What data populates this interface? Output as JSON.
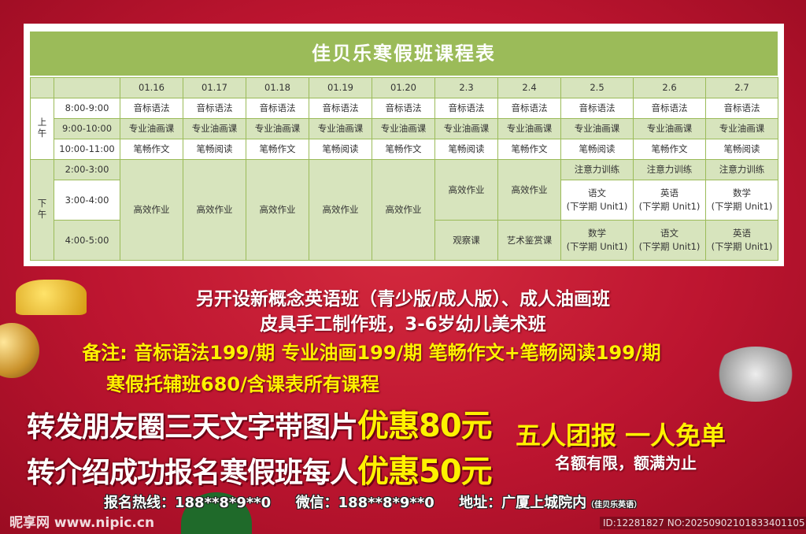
{
  "title": "佳贝乐寒假班课程表",
  "table": {
    "dates": [
      "01.16",
      "01.17",
      "01.18",
      "01.19",
      "01.20",
      "2.3",
      "2.4",
      "2.5",
      "2.6",
      "2.7"
    ],
    "morning_label": "上午",
    "afternoon_label": "下午",
    "morning": [
      {
        "time": "8:00-9:00",
        "cells": [
          "音标语法",
          "音标语法",
          "音标语法",
          "音标语法",
          "音标语法",
          "音标语法",
          "音标语法",
          "音标语法",
          "音标语法",
          "音标语法"
        ]
      },
      {
        "time": "9:00-10:00",
        "cells": [
          "专业油画课",
          "专业油画课",
          "专业油画课",
          "专业油画课",
          "专业油画课",
          "专业油画课",
          "专业油画课",
          "专业油画课",
          "专业油画课",
          "专业油画课"
        ]
      },
      {
        "time": "10:00-11:00",
        "cells": [
          "笔畅作文",
          "笔畅阅读",
          "笔畅作文",
          "笔畅阅读",
          "笔畅作文",
          "笔畅阅读",
          "笔畅作文",
          "笔畅阅读",
          "笔畅作文",
          "笔畅阅读"
        ]
      }
    ],
    "afternoon_times": [
      "2:00-3:00",
      "3:00-4:00",
      "4:00-5:00"
    ],
    "afternoon_full": [
      "高效作业",
      "高效作业",
      "高效作业",
      "高效作业",
      "高效作业"
    ],
    "afternoon_split": [
      {
        "top": "高效作业",
        "bottom": "观察课"
      },
      {
        "top": "高效作业",
        "bottom": "艺术鉴赏课"
      }
    ],
    "afternoon_three": [
      {
        "a": "注意力训练",
        "b1": "语文",
        "b2": "(下学期 Unit1)",
        "c1": "数学",
        "c2": "(下学期 Unit1)"
      },
      {
        "a": "注意力训练",
        "b1": "英语",
        "b2": "(下学期 Unit1)",
        "c1": "语文",
        "c2": "(下学期 Unit1)"
      },
      {
        "a": "注意力训练",
        "b1": "数学",
        "b2": "(下学期 Unit1)",
        "c1": "英语",
        "c2": "(下学期 Unit1)"
      }
    ]
  },
  "promo": {
    "line1": "另开设新概念英语班（青少版/成人版）、成人油画班",
    "line2": "皮具手工制作班，3-6岁幼儿美术班",
    "note": "备注: 音标语法199/期  专业油画199/期  笔畅作文+笔畅阅读199/期",
    "note2": "寒假托辅班680/含课表所有课程",
    "offer1_text": "转发朋友圈三天文字带图片",
    "offer1_value": "优惠80元",
    "offer2_text": "转介绍成功报名寒假班每人",
    "offer2_value": "优惠50元",
    "group": "五人团报 一人免单",
    "limited": "名额有限，额满为止"
  },
  "footer": {
    "hotline": "报名热线：188**8*9**0",
    "wechat": "微信：188**8*9**0",
    "address": "地址：广厦上城院内",
    "address_note": "（佳贝乐英语）"
  },
  "watermark": {
    "site": "昵享网 www.nipic.cn",
    "id": "ID:12281827 NO:20250902101833401105"
  },
  "colors": {
    "table_green": "#9bbb59",
    "cell_green": "#d7e4bd",
    "background_red": "#c01a32",
    "highlight_yellow": "#fff200"
  }
}
